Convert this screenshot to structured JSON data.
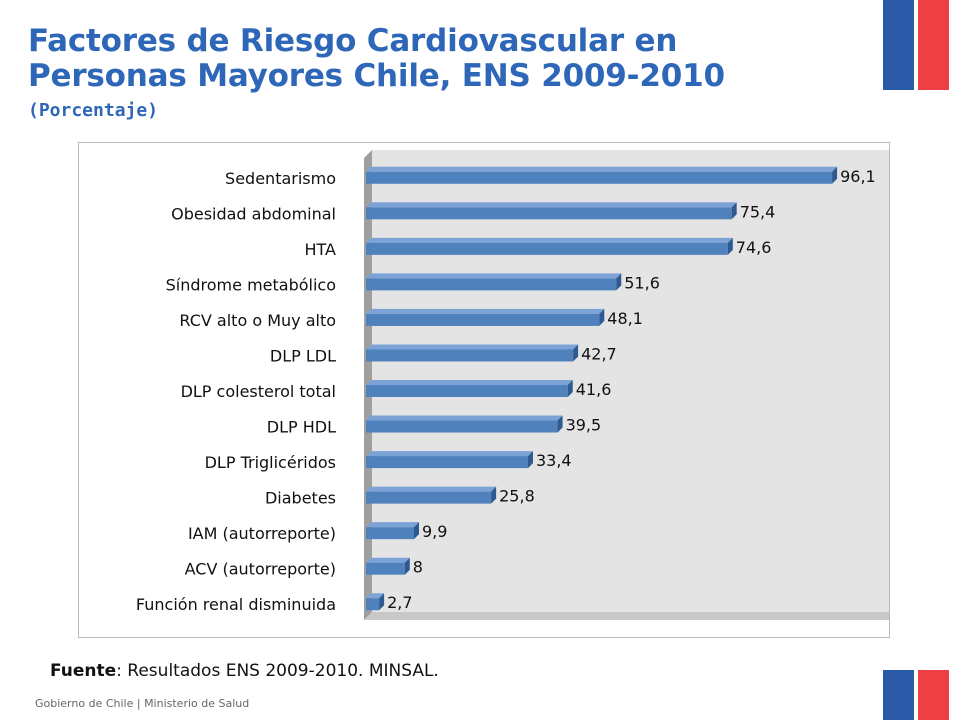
{
  "header": {
    "title_line1": "Factores de Riesgo Cardiovascular en",
    "title_line2": "Personas Mayores Chile, ENS 2009-2010",
    "subtitle": "(Porcentaje)"
  },
  "source": {
    "label": "Fuente",
    "text": ": Resultados ENS 2009-2010. MINSAL."
  },
  "footer": {
    "text": "Gobierno de Chile | Ministerio de Salud"
  },
  "colors": {
    "title": "#2e66b8",
    "bar_front": "#4f81bd",
    "bar_top": "#7da3d6",
    "bar_side": "#2f5a91",
    "flag_blue": "#2a5aa8",
    "flag_red": "#ee3f45"
  },
  "chart_data": {
    "type": "bar",
    "orientation": "horizontal",
    "title": "",
    "xlabel": "",
    "ylabel": "",
    "xlim": [
      0,
      100
    ],
    "grid": false,
    "categories": [
      "Sedentarismo",
      "Obesidad abdominal",
      "HTA",
      "Síndrome metabólico",
      "RCV alto o Muy alto",
      "DLP LDL",
      "DLP colesterol total",
      "DLP HDL",
      "DLP Triglicéridos",
      "Diabetes",
      "IAM (autorreporte)",
      "ACV (autorreporte)",
      "Función renal disminuida"
    ],
    "values": [
      96.1,
      75.4,
      74.6,
      51.6,
      48.1,
      42.7,
      41.6,
      39.5,
      33.4,
      25.8,
      9.9,
      8,
      2.7
    ],
    "value_labels": [
      "96,1",
      "75,4",
      "74,6",
      "51,6",
      "48,1",
      "42,7",
      "41,6",
      "39,5",
      "33,4",
      "25,8",
      "9,9",
      "8",
      "2,7"
    ]
  }
}
